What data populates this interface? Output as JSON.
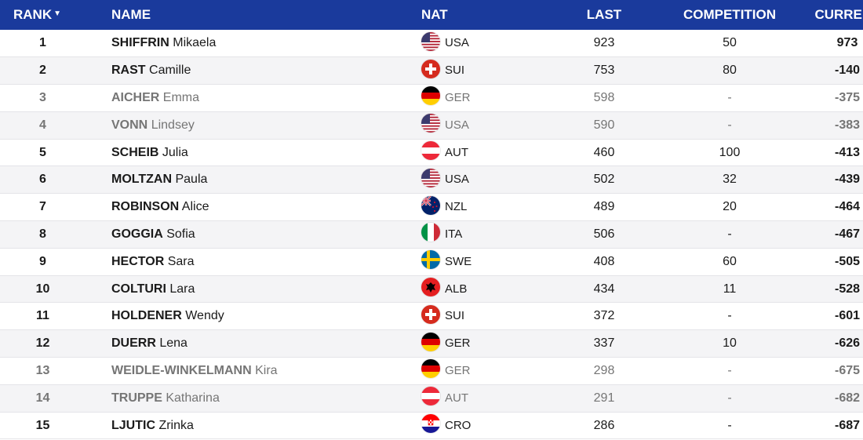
{
  "header_color": "#1a3a9c",
  "columns": {
    "rank": "RANK",
    "name": "NAME",
    "nat": "NAT",
    "last": "LAST",
    "competition": "COMPETITION",
    "current": "CURRENT"
  },
  "rows": [
    {
      "rank": "1",
      "surname": "SHIFFRIN",
      "first": "Mikaela",
      "nat": "USA",
      "flag": "usa-flag-icon",
      "last": "923",
      "competition": "50",
      "current": "973",
      "inactive": false
    },
    {
      "rank": "2",
      "surname": "RAST",
      "first": "Camille",
      "nat": "SUI",
      "flag": "sui-flag-icon",
      "last": "753",
      "competition": "80",
      "current": "-140",
      "inactive": false
    },
    {
      "rank": "3",
      "surname": "AICHER",
      "first": "Emma",
      "nat": "GER",
      "flag": "ger-flag-icon",
      "last": "598",
      "competition": "-",
      "current": "-375",
      "inactive": true
    },
    {
      "rank": "4",
      "surname": "VONN",
      "first": "Lindsey",
      "nat": "USA",
      "flag": "usa-flag-icon",
      "last": "590",
      "competition": "-",
      "current": "-383",
      "inactive": true
    },
    {
      "rank": "5",
      "surname": "SCHEIB",
      "first": "Julia",
      "nat": "AUT",
      "flag": "aut-flag-icon",
      "last": "460",
      "competition": "100",
      "current": "-413",
      "inactive": false
    },
    {
      "rank": "6",
      "surname": "MOLTZAN",
      "first": "Paula",
      "nat": "USA",
      "flag": "usa-flag-icon",
      "last": "502",
      "competition": "32",
      "current": "-439",
      "inactive": false
    },
    {
      "rank": "7",
      "surname": "ROBINSON",
      "first": "Alice",
      "nat": "NZL",
      "flag": "nzl-flag-icon",
      "last": "489",
      "competition": "20",
      "current": "-464",
      "inactive": false
    },
    {
      "rank": "8",
      "surname": "GOGGIA",
      "first": "Sofia",
      "nat": "ITA",
      "flag": "ita-flag-icon",
      "last": "506",
      "competition": "-",
      "current": "-467",
      "inactive": false
    },
    {
      "rank": "9",
      "surname": "HECTOR",
      "first": "Sara",
      "nat": "SWE",
      "flag": "swe-flag-icon",
      "last": "408",
      "competition": "60",
      "current": "-505",
      "inactive": false
    },
    {
      "rank": "10",
      "surname": "COLTURI",
      "first": "Lara",
      "nat": "ALB",
      "flag": "alb-flag-icon",
      "last": "434",
      "competition": "11",
      "current": "-528",
      "inactive": false
    },
    {
      "rank": "11",
      "surname": "HOLDENER",
      "first": "Wendy",
      "nat": "SUI",
      "flag": "sui-flag-icon",
      "last": "372",
      "competition": "-",
      "current": "-601",
      "inactive": false
    },
    {
      "rank": "12",
      "surname": "DUERR",
      "first": "Lena",
      "nat": "GER",
      "flag": "ger-flag-icon",
      "last": "337",
      "competition": "10",
      "current": "-626",
      "inactive": false
    },
    {
      "rank": "13",
      "surname": "WEIDLE-WINKELMANN",
      "first": "Kira",
      "nat": "GER",
      "flag": "ger-flag-icon",
      "last": "298",
      "competition": "-",
      "current": "-675",
      "inactive": true
    },
    {
      "rank": "14",
      "surname": "TRUPPE",
      "first": "Katharina",
      "nat": "AUT",
      "flag": "aut-flag-icon",
      "last": "291",
      "competition": "-",
      "current": "-682",
      "inactive": true
    },
    {
      "rank": "15",
      "surname": "LJUTIC",
      "first": "Zrinka",
      "nat": "CRO",
      "flag": "cro-flag-icon",
      "last": "286",
      "competition": "-",
      "current": "-687",
      "inactive": false
    }
  ]
}
